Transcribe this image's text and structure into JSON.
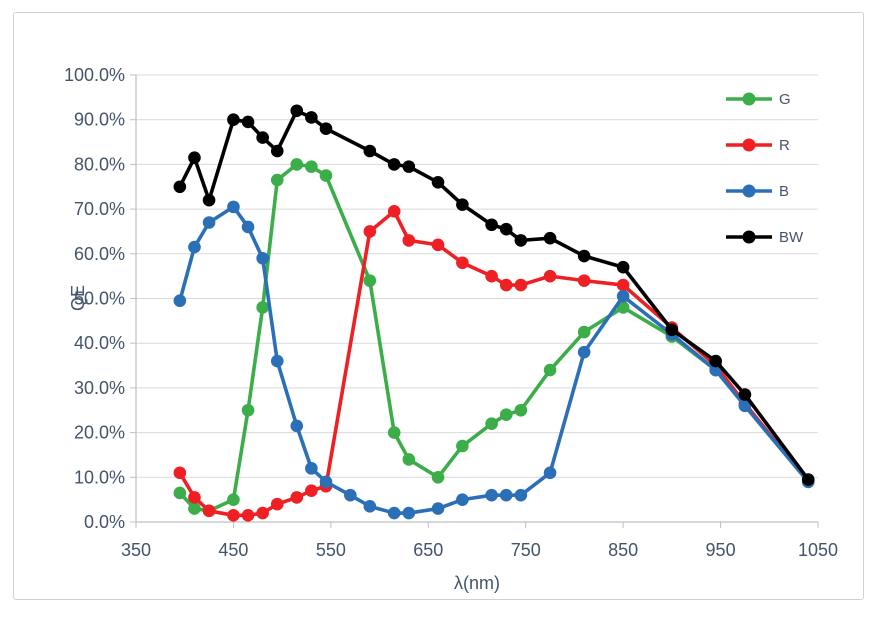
{
  "chart_data": {
    "type": "line",
    "title": "",
    "xlabel": "λ(nm)",
    "ylabel": "QE",
    "xlim": [
      350,
      1050
    ],
    "ylim": [
      0,
      100
    ],
    "x_ticks": [
      350,
      450,
      550,
      650,
      750,
      850,
      950,
      1050
    ],
    "x_tick_labels": [
      "350",
      "450",
      "550",
      "650",
      "750",
      "850",
      "950",
      "1050"
    ],
    "y_ticks": [
      0,
      10,
      20,
      30,
      40,
      50,
      60,
      70,
      80,
      90,
      100
    ],
    "y_tick_labels": [
      "0.0%",
      "10.0%",
      "20.0%",
      "30.0%",
      "40.0%",
      "50.0%",
      "60.0%",
      "70.0%",
      "80.0%",
      "90.0%",
      "100.0%"
    ],
    "grid": "horizontal",
    "legend_position": "top-right",
    "y_unit": "percent",
    "series": [
      {
        "name": "G",
        "color": "#3bad49",
        "x": [
          395,
          410,
          425,
          450,
          465,
          480,
          495,
          515,
          530,
          545,
          590,
          615,
          630,
          660,
          685,
          715,
          730,
          745,
          775,
          810,
          850,
          900,
          945,
          975,
          1040
        ],
        "y": [
          6.5,
          3,
          2.5,
          5,
          25,
          48,
          76.5,
          80,
          79.5,
          77.5,
          54,
          20,
          14,
          10,
          17,
          22,
          24,
          25,
          34,
          42.5,
          48,
          41.5,
          34,
          26,
          9
        ]
      },
      {
        "name": "R",
        "color": "#ee2024",
        "x": [
          395,
          410,
          425,
          450,
          465,
          480,
          495,
          515,
          530,
          545,
          590,
          615,
          630,
          660,
          685,
          715,
          730,
          745,
          775,
          810,
          850,
          900,
          945,
          975,
          1040
        ],
        "y": [
          11,
          5.5,
          2.5,
          1.5,
          1.5,
          2,
          4,
          5.5,
          7,
          8,
          65,
          69.5,
          63,
          62,
          58,
          55,
          53,
          53,
          55,
          54,
          53,
          43.5,
          35,
          26.5,
          9
        ]
      },
      {
        "name": "B",
        "color": "#2b6fb7",
        "x": [
          395,
          410,
          425,
          450,
          465,
          480,
          495,
          515,
          530,
          545,
          570,
          590,
          615,
          630,
          660,
          685,
          715,
          730,
          745,
          775,
          810,
          850,
          900,
          945,
          975,
          1040
        ],
        "y": [
          49.5,
          61.5,
          67,
          70.5,
          66,
          59,
          36,
          21.5,
          12,
          9,
          6,
          3.5,
          2,
          2,
          3,
          5,
          6,
          6,
          6,
          11,
          38,
          50.5,
          42,
          34,
          26,
          9
        ]
      },
      {
        "name": "BW",
        "color": "#000000",
        "x": [
          395,
          410,
          425,
          450,
          465,
          480,
          495,
          515,
          530,
          545,
          590,
          615,
          630,
          660,
          685,
          715,
          730,
          745,
          775,
          810,
          850,
          900,
          945,
          975,
          1040
        ],
        "y": [
          75,
          81.5,
          72,
          90,
          89.5,
          86,
          83,
          92,
          90.5,
          88,
          83,
          80,
          79.5,
          76,
          71,
          66.5,
          65.5,
          63,
          63.5,
          59.5,
          57,
          43,
          36,
          28.5,
          9.5
        ]
      }
    ],
    "colors": {
      "text": "#44546a",
      "gridline": "#d9d9d9",
      "axis_line": "#bfbfbf",
      "figure_border": "#d1d1d1"
    }
  }
}
